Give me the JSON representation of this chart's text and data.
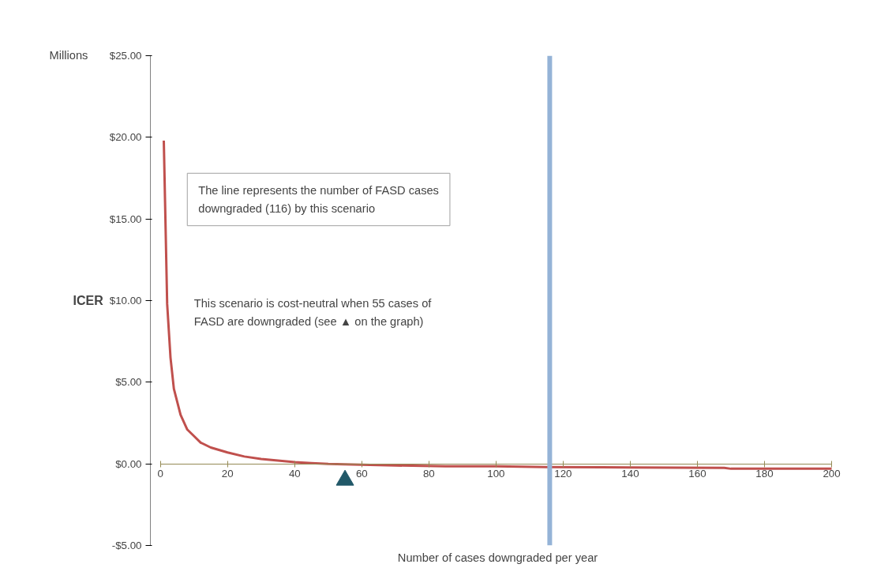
{
  "chart_data": {
    "type": "line",
    "xlabel": "Number of cases downgraded per year",
    "ylabel": "ICER",
    "annotations": [
      "Millions",
      "The line represents the number of FASD cases downgraded (116) by this scenario",
      "This scenario is cost-neutral when 55 cases of FASD are downgraded (see ▲ on the graph)"
    ],
    "series": [
      {
        "type": "line",
        "color": "#c0504d",
        "x": [
          1,
          2,
          3,
          4,
          6,
          8,
          10,
          12,
          15,
          20,
          25,
          30,
          35,
          40,
          45,
          50,
          60,
          70,
          85,
          100,
          115,
          140,
          168,
          170,
          200
        ],
        "values": [
          19.8,
          9.8,
          6.5,
          4.6,
          3.0,
          2.1,
          1.7,
          1.3,
          1.0,
          0.7,
          0.45,
          0.3,
          0.2,
          0.1,
          0.05,
          0.0,
          -0.05,
          -0.1,
          -0.15,
          -0.15,
          -0.2,
          -0.22,
          -0.25,
          -0.3,
          -0.3
        ]
      },
      {
        "type": "scatter",
        "color": "#215868",
        "marker": "triangle",
        "x": [
          55
        ],
        "values": [
          -1
        ]
      }
    ],
    "ref_lines": [
      {
        "axis": "x",
        "value": 116,
        "color": "#95b3d7"
      }
    ],
    "xlim": [
      0,
      200
    ],
    "xticks": [
      0,
      20,
      40,
      60,
      80,
      100,
      120,
      140,
      160,
      180,
      200
    ],
    "ylim": [
      -5,
      25
    ],
    "yticks": [
      {
        "value": -5,
        "label": "-$5.00"
      },
      {
        "value": 0,
        "label": "$0.00"
      },
      {
        "value": 5,
        "label": "$5.00"
      },
      {
        "value": 10,
        "label": "$10.00"
      },
      {
        "value": 15,
        "label": "$15.00"
      },
      {
        "value": 20,
        "label": "$20.00"
      },
      {
        "value": 25,
        "label": "$25.00"
      }
    ],
    "grid": false
  }
}
